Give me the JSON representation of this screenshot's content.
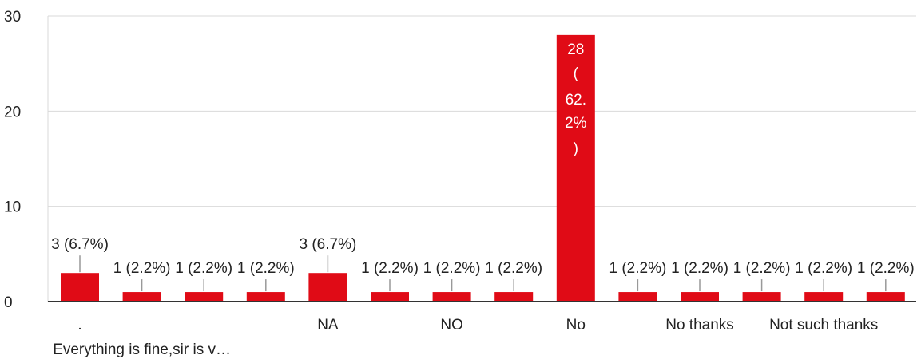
{
  "chart_data": {
    "type": "bar",
    "categories": [
      ".",
      "Everything is fine,sir is v…",
      "",
      "",
      "NA",
      "",
      "NO",
      "",
      "No",
      "",
      "No thanks",
      "",
      "Not such thanks",
      ""
    ],
    "values": [
      3,
      1,
      1,
      1,
      3,
      1,
      1,
      1,
      28,
      1,
      1,
      1,
      1,
      1
    ],
    "data_labels": [
      "3 (6.7%)",
      "1 (2.2%)",
      "1 (2.2%)",
      "1 (2.2%)",
      "3 (6.7%)",
      "1 (2.2%)",
      "1 (2.2%)",
      "1 (2.2%)",
      "28 (62.2%)",
      "1 (2.2%)",
      "1 (2.2%)",
      "1 (2.2%)",
      "1 (2.2%)",
      "1 (2.2%)"
    ],
    "inside_label_lines": [
      "28",
      "(",
      "62.",
      "2%",
      ")"
    ],
    "yticks": [
      0,
      10,
      20,
      30
    ],
    "ylim": [
      0,
      30
    ],
    "grid": true,
    "title": "",
    "xlabel": "",
    "ylabel": "",
    "colors": {
      "bar": "#e00b16",
      "grid": "#d9d9d9",
      "axis": "#333333",
      "leader": "#999999",
      "text": "#222222"
    }
  }
}
